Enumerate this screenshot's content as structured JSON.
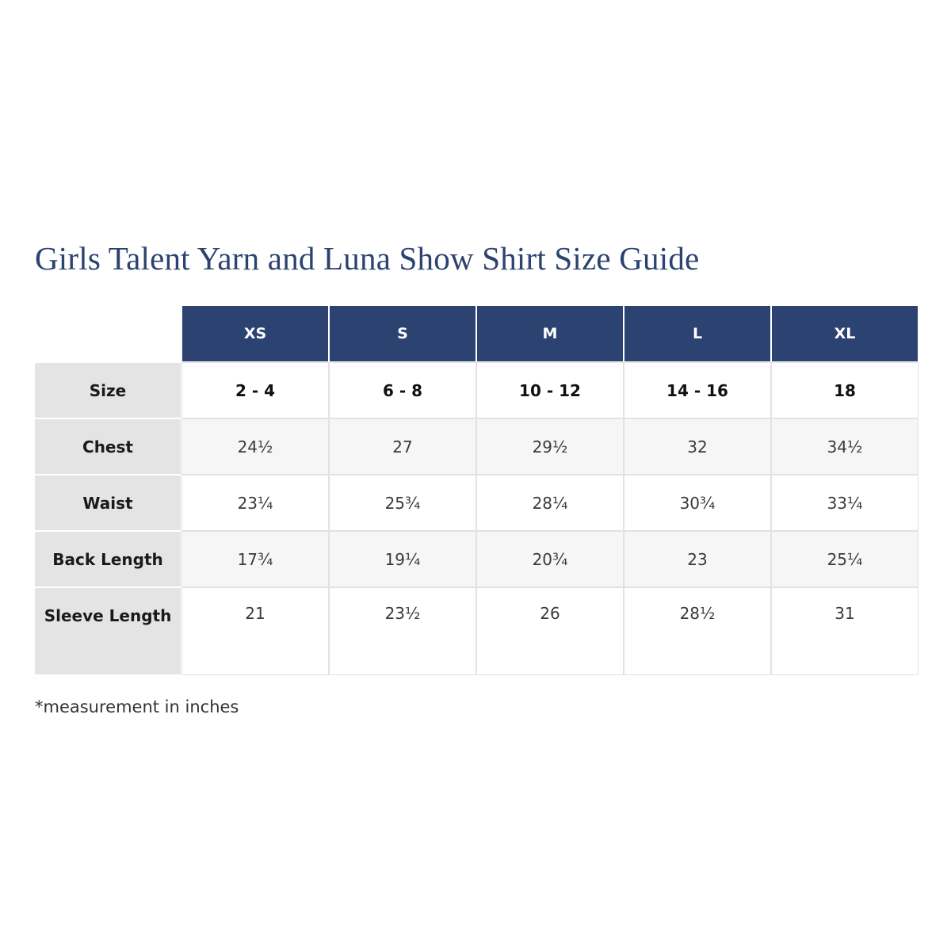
{
  "title": "Girls Talent Yarn and Luna Show Shirt Size Guide",
  "colors": {
    "header_bg": "#2c4270",
    "title_text": "#2c4270",
    "row_label_bg": "#e4e4e4",
    "row_alt_bg": "#f6f6f6"
  },
  "table": {
    "columns": [
      "XS",
      "S",
      "M",
      "L",
      "XL"
    ],
    "rows": [
      {
        "label": "Size",
        "values": [
          "2 - 4",
          "6 - 8",
          "10 - 12",
          "14 - 16",
          "18"
        ]
      },
      {
        "label": "Chest",
        "values": [
          "24½",
          "27",
          "29½",
          "32",
          "34½"
        ]
      },
      {
        "label": "Waist",
        "values": [
          "23¼",
          "25¾",
          "28¼",
          "30¾",
          "33¼"
        ]
      },
      {
        "label": "Back Length",
        "values": [
          "17¾",
          "19¼",
          "20¾",
          "23",
          "25¼"
        ]
      },
      {
        "label": "Sleeve Length",
        "values": [
          "21",
          "23½",
          "26",
          "28½",
          "31"
        ]
      }
    ]
  },
  "footnote": "*measurement in inches"
}
